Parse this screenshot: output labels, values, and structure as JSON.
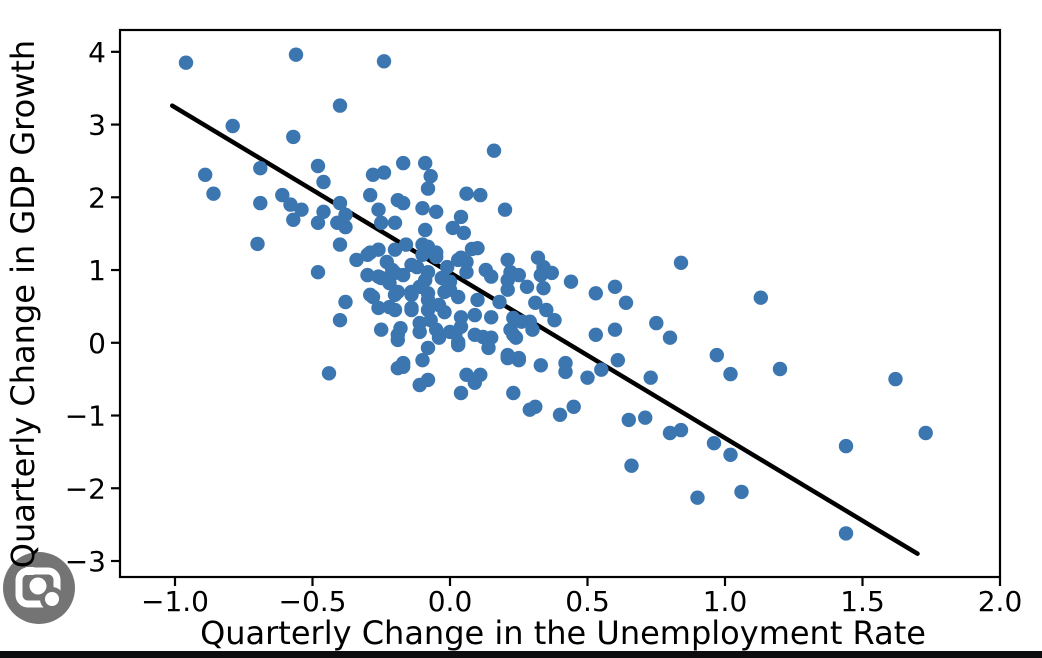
{
  "chart_data": {
    "type": "scatter",
    "title": "",
    "xlabel": "Quarterly Change in the Unemployment Rate",
    "ylabel": "Quarterly Change in GDP Growth",
    "xlim": [
      -1.2,
      2.0
    ],
    "ylim": [
      -3.22,
      4.3
    ],
    "grid": false,
    "legend": "none",
    "x_ticks": [
      -1.0,
      -0.5,
      0.0,
      0.5,
      1.0,
      1.5,
      2.0
    ],
    "x_tick_labels": [
      "−1.0",
      "−0.5",
      "0.0",
      "0.5",
      "1.0",
      "1.5",
      "2.0"
    ],
    "y_ticks": [
      4,
      3,
      2,
      1,
      0,
      -1,
      -2,
      -3
    ],
    "y_tick_labels": [
      "4",
      "3",
      "2",
      "1",
      "0",
      "−1",
      "−2",
      "−3"
    ],
    "marker_color": "#3b76b0",
    "marker_radius_px": 7.2,
    "line_color": "#000000",
    "regression_line": {
      "x1": -1.01,
      "y1": 3.26,
      "x2": 1.7,
      "y2": -2.9
    },
    "points": [
      [
        -0.96,
        3.85
      ],
      [
        -0.56,
        3.96
      ],
      [
        -0.24,
        3.87
      ],
      [
        -0.4,
        3.26
      ],
      [
        -0.79,
        2.98
      ],
      [
        -0.57,
        2.83
      ],
      [
        0.16,
        2.64
      ],
      [
        -0.89,
        2.31
      ],
      [
        -0.86,
        2.05
      ],
      [
        -0.69,
        2.4
      ],
      [
        -0.48,
        2.43
      ],
      [
        -0.46,
        2.21
      ],
      [
        -0.28,
        2.31
      ],
      [
        -0.24,
        2.34
      ],
      [
        -0.17,
        2.47
      ],
      [
        -0.29,
        2.03
      ],
      [
        -0.19,
        1.96
      ],
      [
        -0.17,
        1.92
      ],
      [
        -0.26,
        1.83
      ],
      [
        -0.61,
        2.03
      ],
      [
        -0.58,
        1.9
      ],
      [
        -0.54,
        1.83
      ],
      [
        -0.69,
        1.92
      ],
      [
        -0.46,
        1.8
      ],
      [
        -0.4,
        1.92
      ],
      [
        -0.38,
        1.76
      ],
      [
        -0.09,
        2.47
      ],
      [
        -0.07,
        2.29
      ],
      [
        -0.08,
        2.12
      ],
      [
        0.06,
        2.05
      ],
      [
        0.11,
        2.03
      ],
      [
        0.2,
        1.83
      ],
      [
        -0.1,
        1.85
      ],
      [
        -0.05,
        1.8
      ],
      [
        0.04,
        1.73
      ],
      [
        -0.57,
        1.69
      ],
      [
        -0.7,
        1.36
      ],
      [
        -0.48,
        1.65
      ],
      [
        -0.41,
        1.65
      ],
      [
        -0.38,
        1.59
      ],
      [
        -0.25,
        1.65
      ],
      [
        -0.2,
        1.65
      ],
      [
        -0.4,
        1.35
      ],
      [
        -0.34,
        1.14
      ],
      [
        -0.3,
        1.21
      ],
      [
        -0.26,
        1.28
      ],
      [
        -0.29,
        1.24
      ],
      [
        -0.23,
        1.11
      ],
      [
        -0.2,
        1.28
      ],
      [
        -0.16,
        1.35
      ],
      [
        -0.1,
        1.35
      ],
      [
        -0.09,
        1.55
      ],
      [
        0.01,
        1.58
      ],
      [
        0.05,
        1.51
      ],
      [
        -0.08,
        1.32
      ],
      [
        -0.05,
        1.24
      ],
      [
        -0.1,
        1.21
      ],
      [
        -0.05,
        1.18
      ],
      [
        0.03,
        1.14
      ],
      [
        0.06,
        1.11
      ],
      [
        0.1,
        1.3
      ],
      [
        0.08,
        1.29
      ],
      [
        0.04,
        1.17
      ],
      [
        -0.14,
        1.07
      ],
      [
        -0.12,
        1.04
      ],
      [
        -0.08,
        0.97
      ],
      [
        -0.01,
        1.04
      ],
      [
        -0.21,
        1.0
      ],
      [
        -0.22,
        0.82
      ],
      [
        -0.17,
        0.93
      ],
      [
        0.13,
        1.0
      ],
      [
        0.15,
        0.91
      ],
      [
        0.21,
        1.14
      ],
      [
        0.22,
        0.97
      ],
      [
        0.25,
        0.93
      ],
      [
        0.21,
        0.86
      ],
      [
        0.28,
        0.77
      ],
      [
        0.32,
        1.17
      ],
      [
        0.34,
        1.04
      ],
      [
        0.37,
        0.96
      ],
      [
        0.33,
        0.93
      ],
      [
        0.34,
        0.75
      ],
      [
        0.44,
        0.84
      ],
      [
        0.84,
        1.1
      ],
      [
        -0.48,
        0.97
      ],
      [
        0.0,
        0.84
      ],
      [
        0.06,
        0.97
      ],
      [
        -0.38,
        0.56
      ],
      [
        -0.4,
        0.31
      ],
      [
        -0.28,
        0.63
      ],
      [
        -0.26,
        0.91
      ],
      [
        -0.25,
        0.89
      ],
      [
        -0.3,
        0.93
      ],
      [
        -0.29,
        0.66
      ],
      [
        -0.2,
        0.96
      ],
      [
        -0.2,
        0.66
      ],
      [
        -0.26,
        0.48
      ],
      [
        -0.2,
        0.45
      ],
      [
        -0.14,
        0.7
      ],
      [
        -0.14,
        0.48
      ],
      [
        -0.19,
        0.7
      ],
      [
        -0.14,
        0.66
      ],
      [
        -0.08,
        0.68
      ],
      [
        -0.02,
        0.7
      ],
      [
        0.03,
        0.63
      ],
      [
        0.1,
        0.59
      ],
      [
        0.18,
        0.56
      ],
      [
        0.21,
        0.73
      ],
      [
        0.26,
        0.29
      ],
      [
        0.31,
        0.55
      ],
      [
        0.35,
        0.45
      ],
      [
        0.53,
        0.68
      ],
      [
        0.6,
        0.77
      ],
      [
        0.64,
        0.55
      ],
      [
        1.13,
        0.62
      ],
      [
        0.0,
        0.73
      ],
      [
        -0.03,
        0.89
      ],
      [
        -0.09,
        0.86
      ],
      [
        -0.11,
        0.77
      ],
      [
        -0.22,
        0.49
      ],
      [
        -0.14,
        0.45
      ],
      [
        -0.08,
        0.45
      ],
      [
        -0.02,
        0.42
      ],
      [
        0.04,
        0.35
      ],
      [
        0.09,
        0.38
      ],
      [
        0.15,
        0.35
      ],
      [
        0.23,
        0.34
      ],
      [
        0.29,
        0.29
      ],
      [
        0.22,
        0.18
      ],
      [
        0.24,
        0.07
      ],
      [
        0.38,
        0.31
      ],
      [
        -0.18,
        0.2
      ],
      [
        -0.11,
        0.15
      ],
      [
        -0.05,
        0.18
      ],
      [
        0.02,
        0.13
      ],
      [
        0.09,
        0.11
      ],
      [
        0.15,
        0.07
      ],
      [
        0.23,
        0.11
      ],
      [
        0.3,
        0.18
      ],
      [
        -0.07,
        0.31
      ],
      [
        -0.11,
        0.27
      ],
      [
        0.04,
        0.22
      ],
      [
        0.12,
        0.08
      ],
      [
        -0.04,
        0.07
      ],
      [
        0.03,
        0.01
      ],
      [
        -0.19,
        0.04
      ],
      [
        0.0,
        0.15
      ],
      [
        -0.25,
        0.18
      ],
      [
        -0.19,
        0.11
      ],
      [
        0.53,
        0.11
      ],
      [
        0.6,
        0.18
      ],
      [
        0.75,
        0.27
      ],
      [
        0.8,
        0.07
      ],
      [
        -0.04,
        0.52
      ],
      [
        -0.08,
        0.59
      ],
      [
        -0.08,
        -0.07
      ],
      [
        0.03,
        -0.03
      ],
      [
        0.14,
        -0.07
      ],
      [
        0.21,
        -0.17
      ],
      [
        0.25,
        -0.24
      ],
      [
        -0.17,
        -0.28
      ],
      [
        -0.19,
        -0.35
      ],
      [
        -0.1,
        -0.24
      ],
      [
        -0.44,
        -0.42
      ],
      [
        -0.17,
        -0.33
      ],
      [
        -0.08,
        -0.51
      ],
      [
        -0.11,
        -0.58
      ],
      [
        0.06,
        -0.44
      ],
      [
        0.11,
        -0.44
      ],
      [
        0.09,
        -0.55
      ],
      [
        0.04,
        -0.69
      ],
      [
        0.21,
        -0.21
      ],
      [
        0.25,
        -0.21
      ],
      [
        0.23,
        -0.69
      ],
      [
        0.33,
        -0.31
      ],
      [
        0.42,
        -0.28
      ],
      [
        0.42,
        -0.4
      ],
      [
        0.5,
        -0.48
      ],
      [
        0.55,
        -0.37
      ],
      [
        0.61,
        -0.24
      ],
      [
        0.73,
        -0.48
      ],
      [
        0.97,
        -0.17
      ],
      [
        1.02,
        -0.43
      ],
      [
        1.2,
        -0.36
      ],
      [
        1.62,
        -0.5
      ],
      [
        0.31,
        -0.88
      ],
      [
        0.29,
        -0.92
      ],
      [
        0.4,
        -0.99
      ],
      [
        0.45,
        -0.88
      ],
      [
        0.65,
        -1.06
      ],
      [
        0.71,
        -1.03
      ],
      [
        0.8,
        -1.24
      ],
      [
        0.84,
        -1.2
      ],
      [
        0.96,
        -1.38
      ],
      [
        1.02,
        -1.54
      ],
      [
        1.06,
        -2.05
      ],
      [
        1.44,
        -1.42
      ],
      [
        1.73,
        -1.24
      ],
      [
        1.44,
        -2.62
      ],
      [
        0.66,
        -1.69
      ],
      [
        0.9,
        -2.13
      ]
    ]
  },
  "overlay": {
    "lens_icon_name": "google-lens-icon",
    "lens_circle_color": "#747474",
    "lens_glyph_color": "#ffffff",
    "bottom_bar_color": "#0d0d10"
  }
}
